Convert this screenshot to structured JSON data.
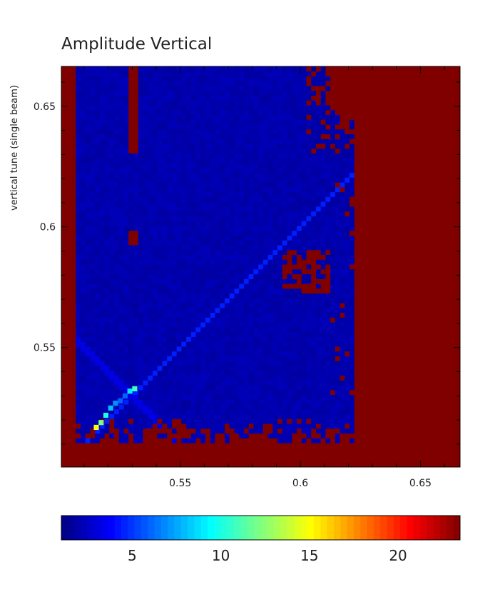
{
  "chart_data": {
    "type": "heatmap",
    "title": "Amplitude Vertical",
    "xlabel": "",
    "ylabel": "vertical tune (single beam)",
    "xlim": [
      0.5005,
      0.6665
    ],
    "ylim": [
      0.5005,
      0.6665
    ],
    "x_ticks": [
      "0.55",
      "0.6",
      "0.65"
    ],
    "x_tick_values": [
      0.55,
      0.6,
      0.65
    ],
    "y_ticks": [
      "0.55",
      "0.6",
      "0.65"
    ],
    "y_tick_values": [
      0.55,
      0.6,
      0.65
    ],
    "color_scale": {
      "min": 1,
      "max": 23.5,
      "colormap": "jet",
      "ticks": [
        "5",
        "10",
        "15",
        "20"
      ],
      "tick_values": [
        5,
        10,
        15,
        20
      ]
    },
    "regions": {
      "background_value": 2,
      "saturated_value": 23.5,
      "left_saturated_below_x": 0.5065,
      "right_saturated_above_x": 0.622,
      "stable_zone_upper_right_x": 0.6,
      "bottom_saturated_band_y": [
        0.5005,
        0.523
      ],
      "vertical_stripe_x": 0.531,
      "vertical_stripe_y": [
        0.63,
        0.6665
      ],
      "diagonal_resonance_line": "x = y",
      "diagonal_resonance_value": 4.5,
      "low_diagonal_values": [
        {
          "x": 0.515,
          "y": 0.517,
          "value": 15
        },
        {
          "x": 0.517,
          "y": 0.519,
          "value": 12
        },
        {
          "x": 0.519,
          "y": 0.522,
          "value": 10
        },
        {
          "x": 0.521,
          "y": 0.525,
          "value": 8
        },
        {
          "x": 0.523,
          "y": 0.527,
          "value": 7
        },
        {
          "x": 0.525,
          "y": 0.528,
          "value": 6
        },
        {
          "x": 0.527,
          "y": 0.53,
          "value": 6
        },
        {
          "x": 0.529,
          "y": 0.532,
          "value": 9
        },
        {
          "x": 0.531,
          "y": 0.533,
          "value": 11
        }
      ]
    }
  }
}
